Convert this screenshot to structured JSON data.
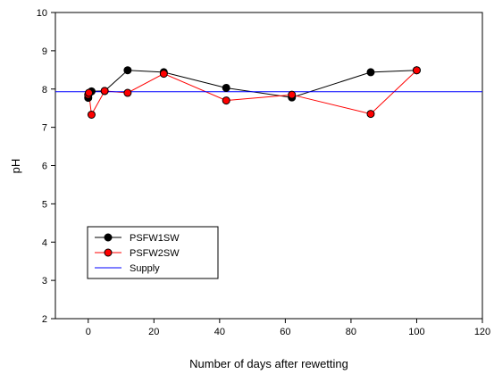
{
  "chart_data": {
    "type": "line",
    "title": "",
    "xlabel": "Number of days after rewetting",
    "ylabel": "pH",
    "xlim": [
      -10,
      120
    ],
    "ylim": [
      2,
      10
    ],
    "xticks": [
      0,
      20,
      40,
      60,
      80,
      100,
      120
    ],
    "yticks": [
      2,
      3,
      4,
      5,
      6,
      7,
      8,
      9,
      10
    ],
    "grid": false,
    "legend_position": "bottom-left",
    "series": [
      {
        "name": "PSFW1SW",
        "color": "#000000",
        "marker": "circle",
        "x": [
          0,
          0.2,
          1,
          5,
          12,
          23,
          42,
          62,
          86,
          100
        ],
        "y": [
          7.77,
          7.88,
          7.94,
          7.95,
          8.49,
          8.44,
          8.03,
          7.78,
          8.44,
          8.49
        ]
      },
      {
        "name": "PSFW2SW",
        "color": "#ff0000",
        "marker": "circle",
        "x": [
          0,
          0.2,
          1,
          5,
          12,
          23,
          42,
          62,
          86,
          100
        ],
        "y": [
          7.85,
          7.9,
          7.33,
          7.95,
          7.9,
          8.4,
          7.7,
          7.85,
          7.35,
          8.49
        ]
      },
      {
        "name": "Supply",
        "color": "#0000ff",
        "marker": "none",
        "x": [
          -10,
          120
        ],
        "y": [
          7.93,
          7.93
        ]
      }
    ]
  }
}
